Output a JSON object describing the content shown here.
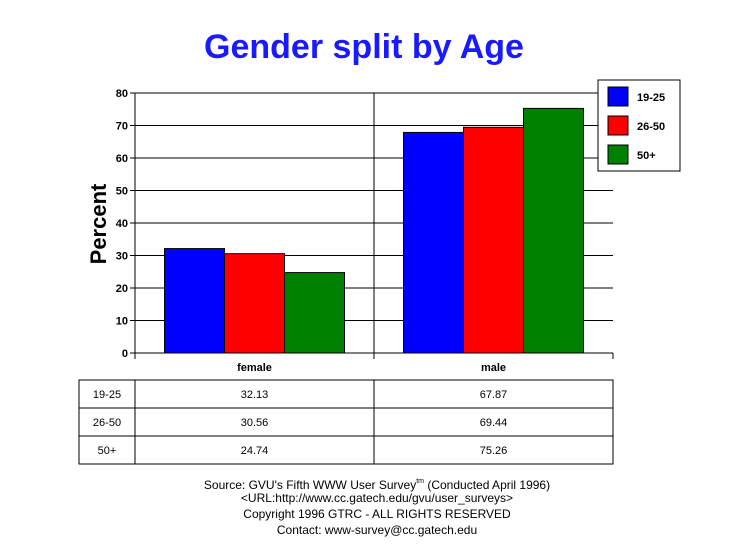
{
  "chart_data": {
    "type": "bar",
    "title": "Gender split by Age",
    "ylabel": "Percent",
    "xlabel": "",
    "categories": [
      "female",
      "male"
    ],
    "series": [
      {
        "name": "19-25",
        "color": "#0000ff",
        "values": [
          32.13,
          67.87
        ],
        "labels": [
          "32.13",
          "67.87"
        ]
      },
      {
        "name": "26-50",
        "color": "#ff0000",
        "values": [
          30.56,
          69.44
        ],
        "labels": [
          "30.56",
          "69.44"
        ]
      },
      {
        "name": "50+",
        "color": "#008000",
        "values": [
          24.74,
          75.26
        ],
        "labels": [
          "24.74",
          "75.26"
        ]
      }
    ],
    "ylim": [
      0,
      80
    ],
    "yticks": [
      "0",
      "10",
      "20",
      "30",
      "40",
      "50",
      "60",
      "70",
      "80"
    ],
    "grid": true,
    "legend": "top-right",
    "title_color": "#1a1aff"
  },
  "footer": {
    "source_prefix": "Source: GVU's Fifth WWW User Survey",
    "source_sup": "tm",
    "source_suffix": "  (Conducted April 1996)",
    "url": "<URL:http://www.cc.gatech.edu/gvu/user_surveys>",
    "copyright": "Copyright 1996 GTRC -  ALL RIGHTS RESERVED",
    "contact": "Contact: www-survey@cc.gatech.edu"
  }
}
